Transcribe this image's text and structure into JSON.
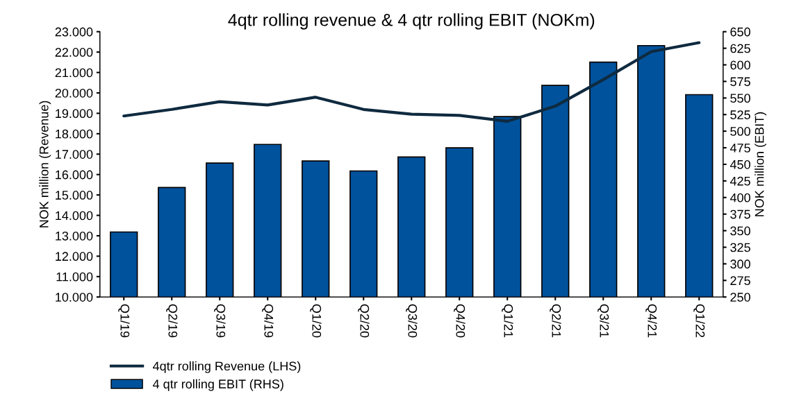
{
  "chart_data": {
    "type": "bar",
    "title": "4qtr rolling revenue & 4 qtr rolling EBIT (NOKm)",
    "ylabel": "NOK million (Revenue)",
    "y2label": "NOK million (EBIT)",
    "categories": [
      "Q1/19",
      "Q2/19",
      "Q3/19",
      "Q4/19",
      "Q1/20",
      "Q2/20",
      "Q3/20",
      "Q4/20",
      "Q1/21",
      "Q2/21",
      "Q3/21",
      "Q4/21",
      "Q1/22"
    ],
    "series": [
      {
        "name": "4qtr rolling Revenue (LHS)",
        "type": "line",
        "color": "#0f2a3f",
        "values": [
          18870,
          19190,
          19570,
          19410,
          19790,
          19190,
          18960,
          18900,
          18610,
          19350,
          20650,
          22020,
          22460
        ]
      },
      {
        "name": "4 qtr rolling EBIT (RHS)",
        "axis": "y2",
        "color": "#00529c",
        "values": [
          348,
          415,
          452,
          480,
          455,
          440,
          461,
          475,
          522,
          569,
          604,
          629,
          555
        ]
      }
    ],
    "ylim": [
      10000,
      23000
    ],
    "yticks": [
      {
        "value": 10000,
        "label": "10.000"
      },
      {
        "value": 11000,
        "label": "11.000"
      },
      {
        "value": 12000,
        "label": "12.000"
      },
      {
        "value": 13000,
        "label": "13.000"
      },
      {
        "value": 14000,
        "label": "14.000"
      },
      {
        "value": 15000,
        "label": "15.000"
      },
      {
        "value": 16000,
        "label": "16.000"
      },
      {
        "value": 17000,
        "label": "17.000"
      },
      {
        "value": 18000,
        "label": "18.000"
      },
      {
        "value": 19000,
        "label": "19.000"
      },
      {
        "value": 20000,
        "label": "20.000"
      },
      {
        "value": 21000,
        "label": "21.000"
      },
      {
        "value": 22000,
        "label": "22.000"
      },
      {
        "value": 23000,
        "label": "23.000"
      }
    ],
    "y2lim": [
      250,
      650
    ],
    "y2ticks": [
      250,
      275,
      300,
      325,
      350,
      375,
      400,
      425,
      450,
      475,
      500,
      525,
      550,
      575,
      600,
      625,
      650
    ],
    "legend": "bottom left",
    "grid": false
  }
}
